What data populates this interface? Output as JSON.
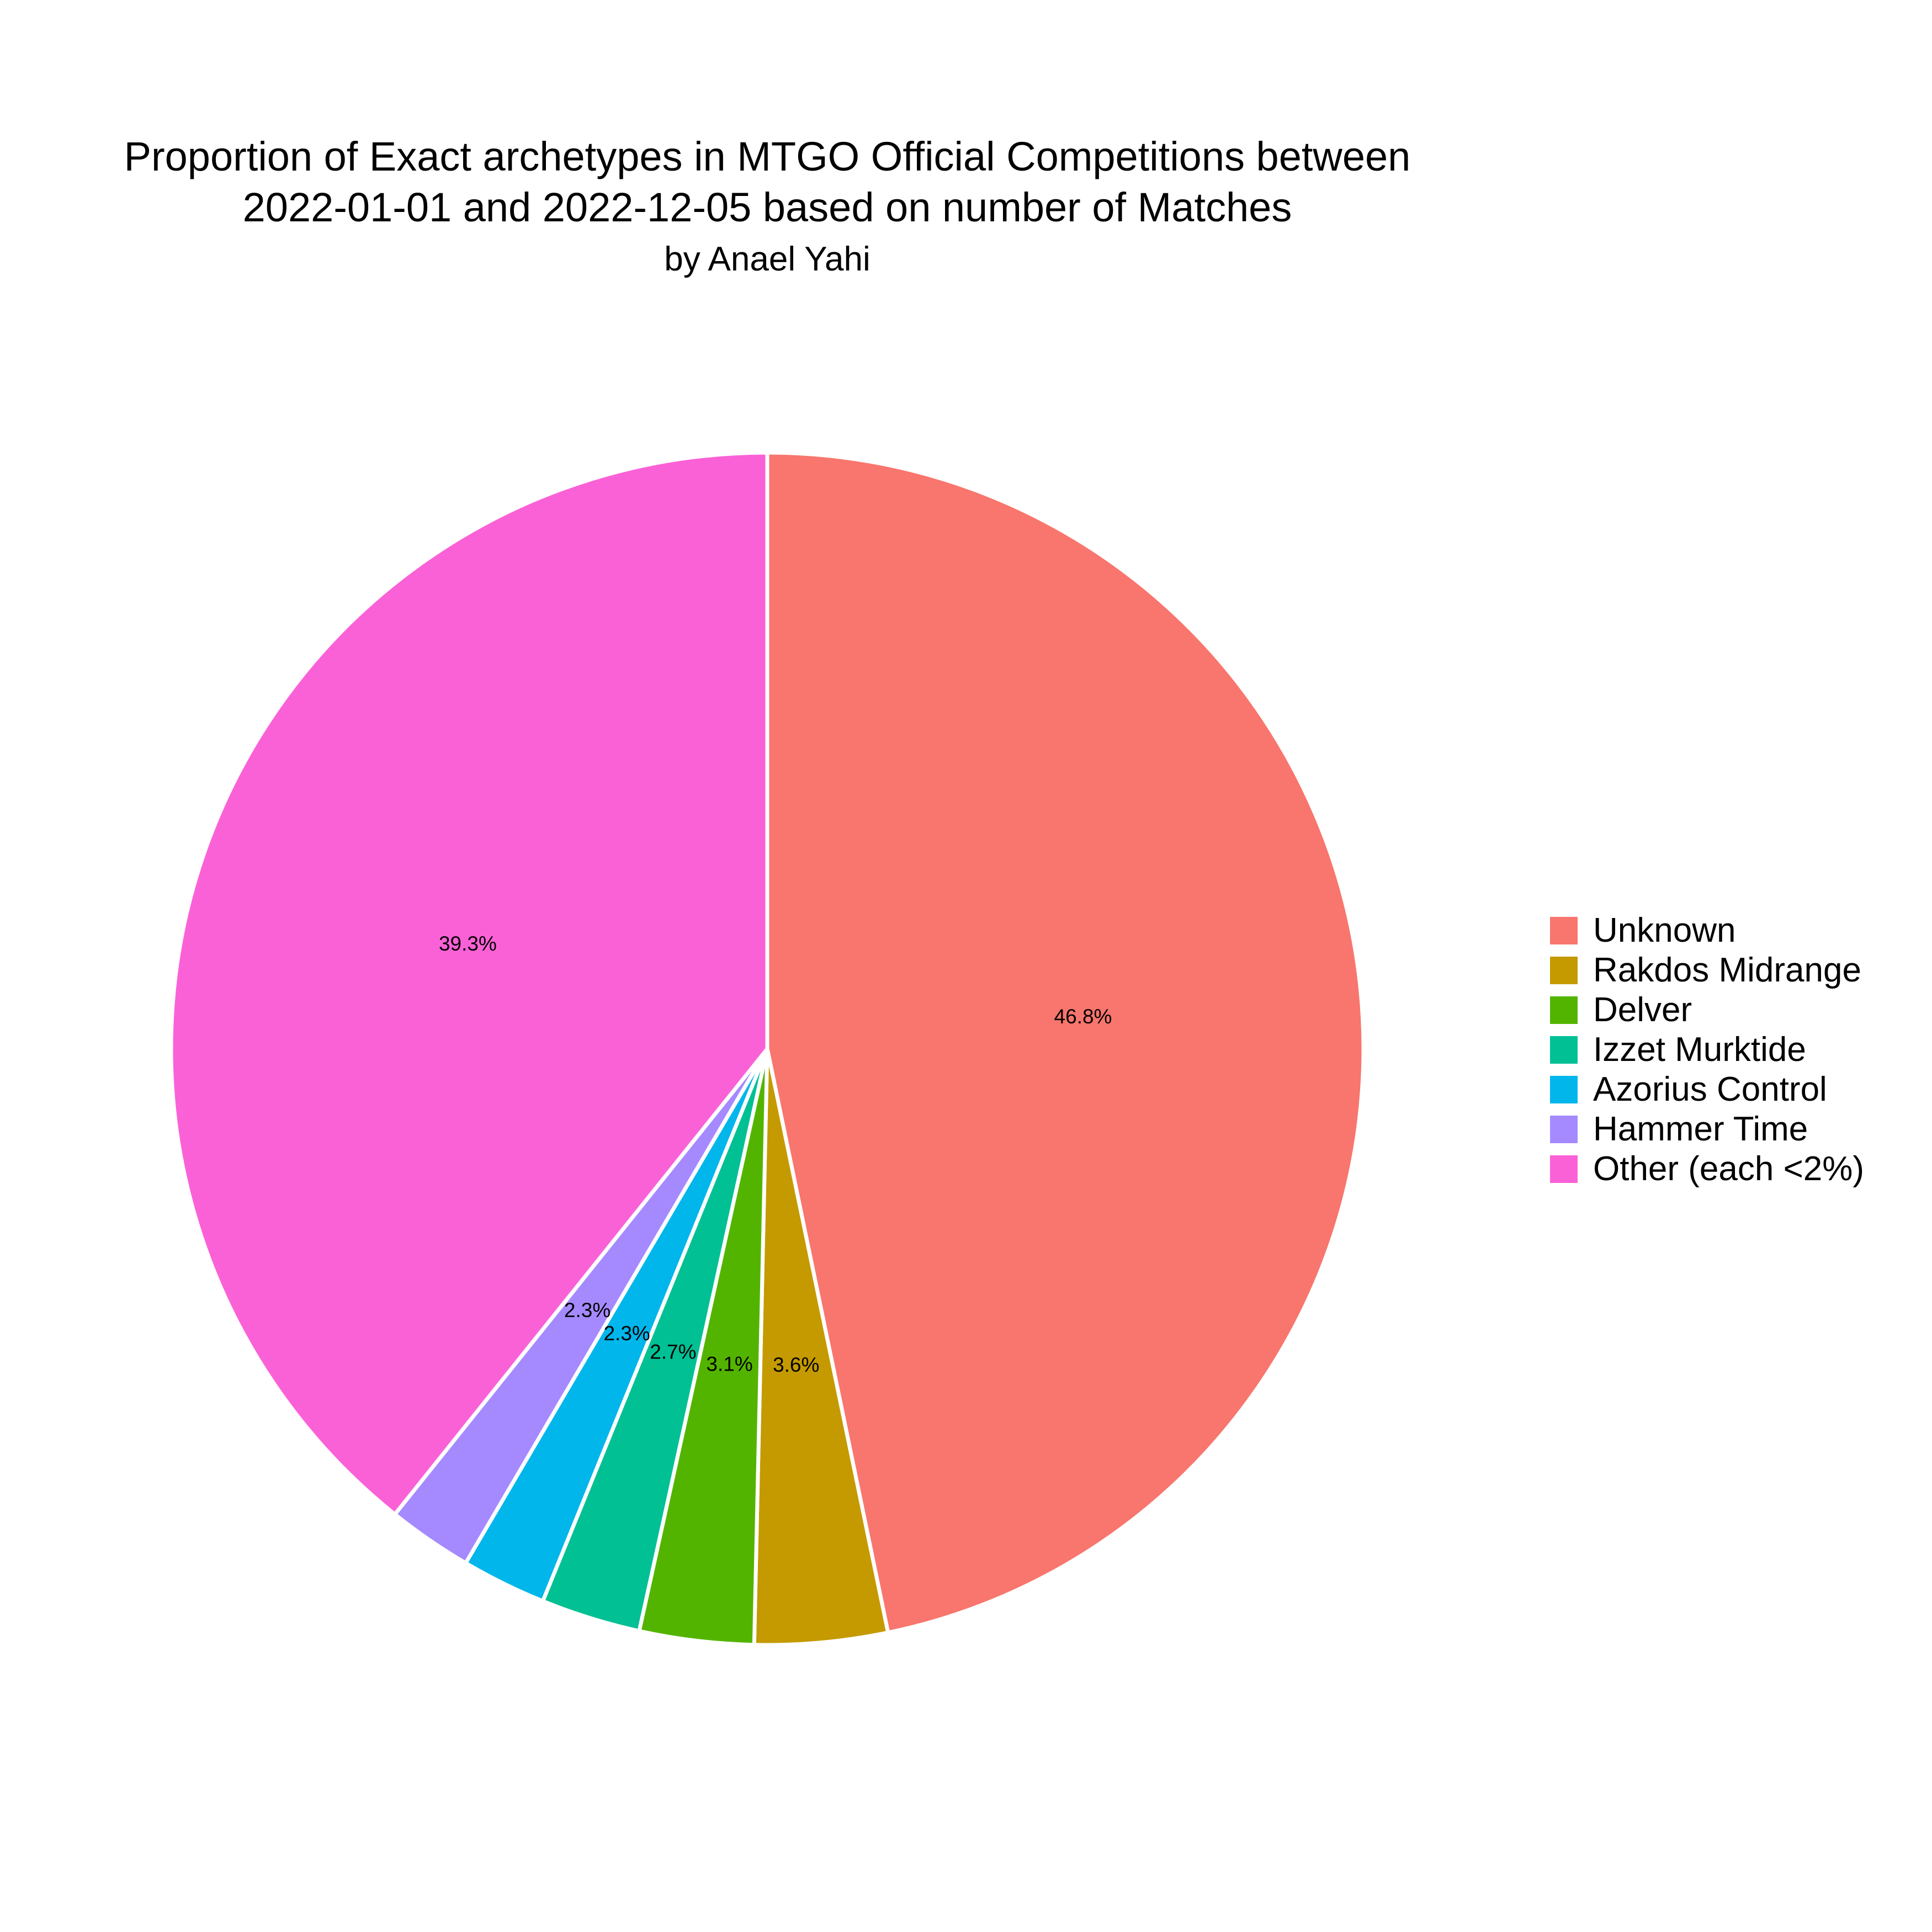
{
  "chart_data": {
    "type": "pie",
    "title_lines": [
      "Proportion of Exact archetypes in MTGO Official Competitions between",
      "2022-01-01 and 2022-12-05 based on number of Matches"
    ],
    "subtitle": "by Anael Yahi",
    "slices": [
      {
        "name": "Unknown",
        "value": 46.8,
        "label": "46.8%",
        "color": "#F8766D"
      },
      {
        "name": "Rakdos Midrange",
        "value": 3.6,
        "label": "3.6%",
        "color": "#C49A00"
      },
      {
        "name": "Delver",
        "value": 3.1,
        "label": "3.1%",
        "color": "#53B400"
      },
      {
        "name": "Izzet Murktide",
        "value": 2.7,
        "label": "2.7%",
        "color": "#00C094"
      },
      {
        "name": "Azorius Control",
        "value": 2.3,
        "label": "2.3%",
        "color": "#00B6EB"
      },
      {
        "name": "Hammer Time",
        "value": 2.3,
        "label": "2.3%",
        "color": "#A58AFF"
      },
      {
        "name": "Other (each <2%)",
        "value": 39.3,
        "label": "39.3%",
        "color": "#FB61D7"
      }
    ],
    "direction": "clockwise",
    "start": "top",
    "legend_position": "right"
  }
}
